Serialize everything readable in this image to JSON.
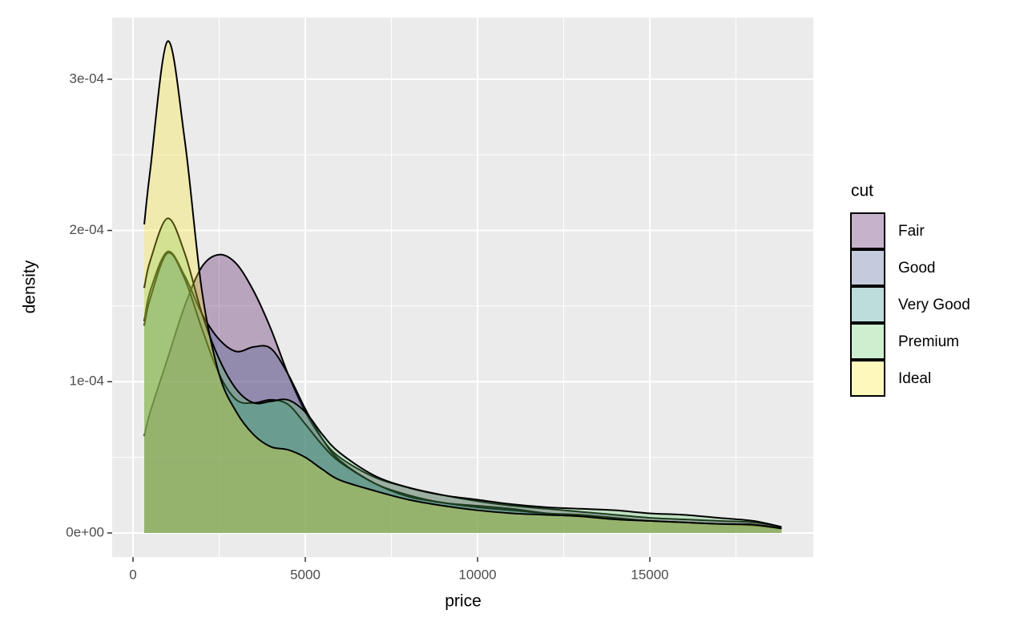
{
  "chart_data": {
    "type": "density",
    "x_label": "price",
    "y_label": "density",
    "legend_title": "cut",
    "x": [
      326,
      500,
      1000,
      1500,
      2000,
      2500,
      3000,
      3500,
      4000,
      4500,
      5000,
      5500,
      6000,
      7000,
      8000,
      9000,
      10000,
      11000,
      12000,
      13000,
      14000,
      15000,
      16000,
      17000,
      18000,
      18823
    ],
    "series": [
      {
        "name": "Fair",
        "color": "#440154",
        "values": [
          6.4e-05,
          8e-05,
          0.000115,
          0.00015,
          0.000176,
          0.000184,
          0.000178,
          0.00016,
          0.000135,
          0.000105,
          8e-05,
          6.2e-05,
          5e-05,
          3.7e-05,
          3e-05,
          2.5e-05,
          2.1e-05,
          1.8e-05,
          1.6e-05,
          1.4e-05,
          1.2e-05,
          1e-05,
          9e-06,
          8e-06,
          7e-06,
          4e-06
        ]
      },
      {
        "name": "Good",
        "color": "#3B528B",
        "values": [
          0.00014,
          0.00016,
          0.000186,
          0.00017,
          0.000145,
          0.000128,
          0.00012,
          0.000123,
          0.000122,
          0.000105,
          8.2e-05,
          6.2e-05,
          4.8e-05,
          3.3e-05,
          2.5e-05,
          2e-05,
          1.8e-05,
          1.6e-05,
          1.3e-05,
          1.1e-05,
          9e-06,
          8e-06,
          7e-06,
          6e-06,
          5.5e-06,
          3e-06
        ]
      },
      {
        "name": "Very Good",
        "color": "#21908C",
        "values": [
          0.000137,
          0.000155,
          0.000185,
          0.000168,
          0.000135,
          0.000105,
          8.8e-05,
          8.6e-05,
          8.8e-05,
          8.5e-05,
          7.2e-05,
          5.8e-05,
          4.7e-05,
          3.3e-05,
          2.4e-05,
          2e-05,
          1.7e-05,
          1.5e-05,
          1.3e-05,
          1.2e-05,
          1e-05,
          8e-06,
          7e-06,
          6e-06,
          5e-06,
          3e-06
        ]
      },
      {
        "name": "Premium",
        "color": "#5DC863",
        "values": [
          0.000162,
          0.00018,
          0.000208,
          0.000185,
          0.000145,
          0.000115,
          9.5e-05,
          8.6e-05,
          8.7e-05,
          8.8e-05,
          8e-05,
          6.5e-05,
          5.3e-05,
          3.8e-05,
          3e-05,
          2.5e-05,
          2.2e-05,
          1.9e-05,
          1.7e-05,
          1.6e-05,
          1.5e-05,
          1.3e-05,
          1.2e-05,
          1e-05,
          8e-06,
          4e-06
        ]
      },
      {
        "name": "Ideal",
        "color": "#FDE725",
        "values": [
          0.000204,
          0.00024,
          0.000325,
          0.00026,
          0.00016,
          0.000105,
          8e-05,
          6.5e-05,
          5.7e-05,
          5.5e-05,
          5e-05,
          4.2e-05,
          3.5e-05,
          2.8e-05,
          2.2e-05,
          1.8e-05,
          1.5e-05,
          1.3e-05,
          1.2e-05,
          1.1e-05,
          9e-06,
          8e-06,
          7e-06,
          6e-06,
          5.5e-06,
          3e-06
        ]
      }
    ],
    "fill_opacity": 0.3,
    "xlim": [
      -605,
      19744
    ],
    "xticks": [
      0,
      5000,
      10000,
      15000
    ],
    "ylim": [
      -1.59e-05,
      0.0003407
    ],
    "yticks": [
      {
        "value": 0,
        "label": "0e+00"
      },
      {
        "value": 0.0001,
        "label": "1e-04"
      },
      {
        "value": 0.0002,
        "label": "2e-04"
      },
      {
        "value": 0.0003,
        "label": "3e-04"
      }
    ],
    "grid": true
  }
}
